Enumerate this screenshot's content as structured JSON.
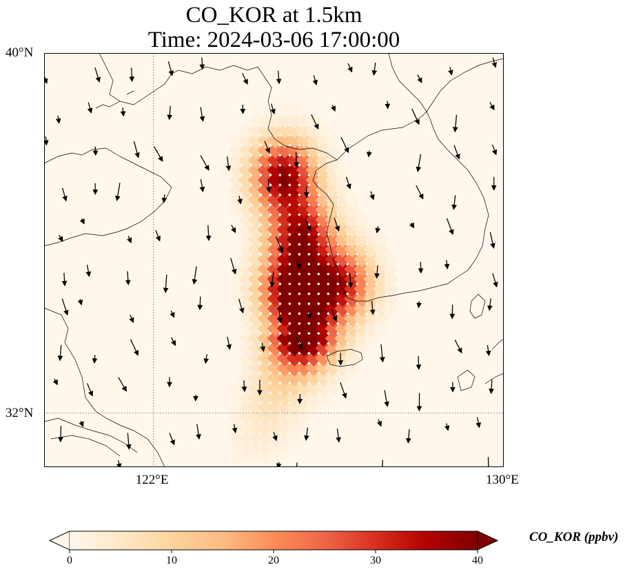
{
  "title": {
    "line1": "CO_KOR at 1.5km",
    "line2": "Time: 2024-03-06 17:00:00"
  },
  "map": {
    "lon_range": [
      119.5,
      130
    ],
    "lat_range": [
      30.8,
      40
    ],
    "gridlines": {
      "lon": [
        122
      ],
      "lat": [
        32
      ]
    },
    "x_ticks": [
      {
        "value": 122,
        "label": "122°E"
      },
      {
        "value": 130,
        "label": "130°E"
      }
    ],
    "y_ticks": [
      {
        "value": 40,
        "label": "40°N"
      },
      {
        "value": 32,
        "label": "32°N"
      }
    ],
    "colormap": "OrRd",
    "plume_cores": [
      {
        "lon": 125.0,
        "lat": 37.3,
        "value": 38
      },
      {
        "lon": 125.4,
        "lat": 36.0,
        "value": 34
      },
      {
        "lon": 125.2,
        "lat": 34.8,
        "value": 38
      },
      {
        "lon": 126.3,
        "lat": 34.9,
        "value": 32
      },
      {
        "lon": 125.5,
        "lat": 33.8,
        "value": 36
      }
    ]
  },
  "colorbar": {
    "label": "CO_KOR (ppbv)",
    "min": 0,
    "max": 40,
    "ticks": [
      "0",
      "10",
      "20",
      "30",
      "40"
    ],
    "extend": "both",
    "colors": [
      "#fff7ec",
      "#fee8c8",
      "#fdd49e",
      "#fdbb84",
      "#fc8d59",
      "#ef6548",
      "#d7301f",
      "#b30000",
      "#7f0000"
    ]
  }
}
